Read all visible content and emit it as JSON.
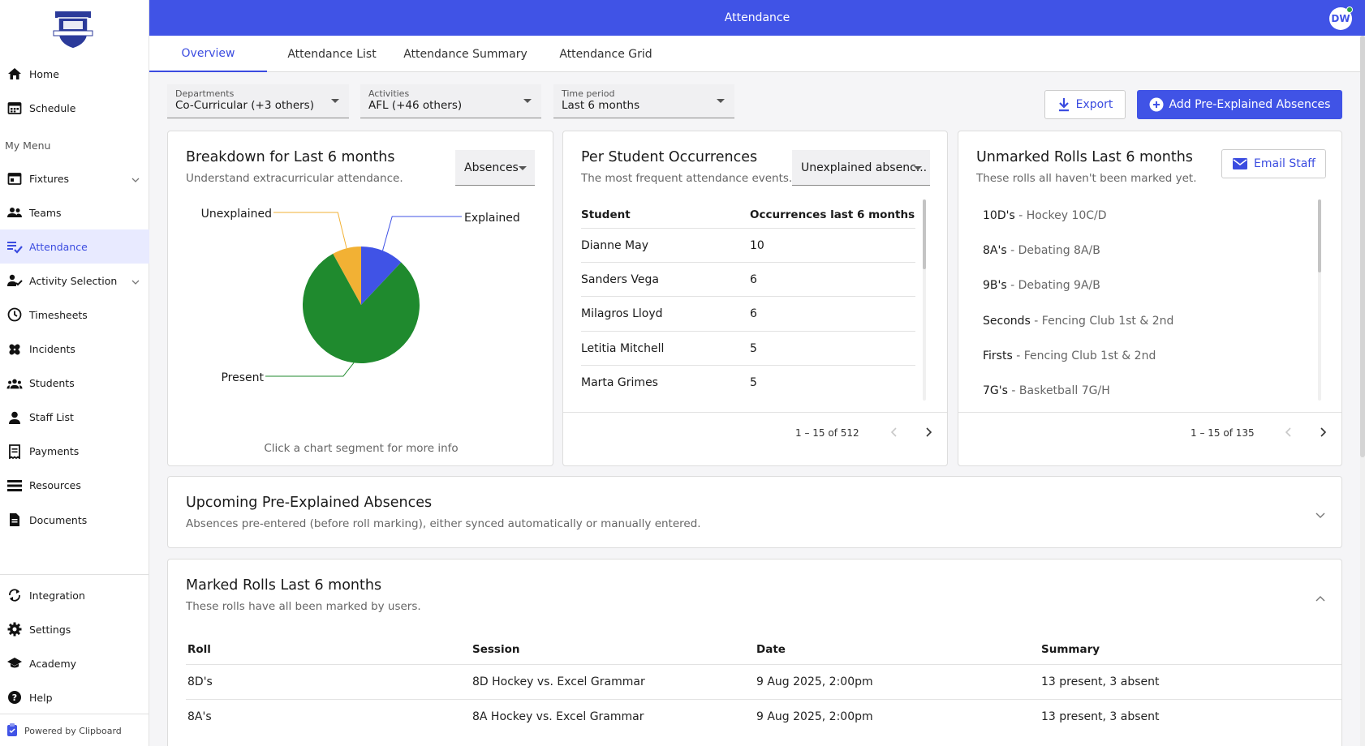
{
  "app": {
    "title": "Attendance",
    "user_initials": "DW",
    "powered_by": "Powered by Clipboard"
  },
  "colors": {
    "primary": "#4053e6",
    "pie_present": "#1f8a2e",
    "pie_explained": "#4053e6",
    "pie_unexplained": "#f2b134"
  },
  "sidebar": {
    "items_top": [
      {
        "label": "Home",
        "icon": "home-icon"
      },
      {
        "label": "Schedule",
        "icon": "calendar-icon"
      }
    ],
    "section_label": "My Menu",
    "items_menu": [
      {
        "label": "Fixtures",
        "icon": "fixtures-icon",
        "expandable": true
      },
      {
        "label": "Teams",
        "icon": "teams-icon"
      },
      {
        "label": "Attendance",
        "icon": "attendance-icon",
        "active": true
      },
      {
        "label": "Activity Selection",
        "icon": "activity-selection-icon",
        "expandable": true
      },
      {
        "label": "Timesheets",
        "icon": "clock-icon"
      },
      {
        "label": "Incidents",
        "icon": "bandage-icon"
      },
      {
        "label": "Students",
        "icon": "students-icon"
      },
      {
        "label": "Staff List",
        "icon": "person-icon"
      },
      {
        "label": "Payments",
        "icon": "receipt-icon"
      },
      {
        "label": "Resources",
        "icon": "list-icon"
      },
      {
        "label": "Documents",
        "icon": "document-icon"
      }
    ],
    "items_bottom": [
      {
        "label": "Integration",
        "icon": "sync-icon"
      },
      {
        "label": "Settings",
        "icon": "gear-icon"
      },
      {
        "label": "Academy",
        "icon": "graduation-cap-icon"
      },
      {
        "label": "Help",
        "icon": "help-icon"
      }
    ]
  },
  "tabs": [
    "Overview",
    "Attendance List",
    "Attendance Summary",
    "Attendance Grid"
  ],
  "filters": {
    "departments": {
      "label": "Departments",
      "value": "Co-Curricular (+3 others)"
    },
    "activities": {
      "label": "Activities",
      "value": "AFL (+46 others)"
    },
    "time_period": {
      "label": "Time period",
      "value": "Last 6 months"
    }
  },
  "actions": {
    "export": "Export",
    "add_pre_explained": "Add Pre-Explained Absences"
  },
  "breakdown": {
    "title": "Breakdown for Last 6 months",
    "subtitle": "Understand extracurricular attendance.",
    "select": "Absences",
    "hint": "Click a chart segment for more info"
  },
  "chart_data": {
    "type": "pie",
    "categories": [
      "Explained",
      "Present",
      "Unexplained"
    ],
    "values": [
      12,
      80,
      8
    ]
  },
  "per_student": {
    "title": "Per Student Occurrences",
    "subtitle": "The most frequent attendance events.",
    "select": "Unexplained absenc...",
    "columns": [
      "Student",
      "Occurrences last 6 months"
    ],
    "rows": [
      {
        "student": "Dianne May",
        "count": "10"
      },
      {
        "student": "Sanders Vega",
        "count": "6"
      },
      {
        "student": "Milagros Lloyd",
        "count": "6"
      },
      {
        "student": "Letitia Mitchell",
        "count": "5"
      },
      {
        "student": "Marta Grimes",
        "count": "5"
      }
    ],
    "pagination": "1 – 15 of 512"
  },
  "unmarked": {
    "title": "Unmarked Rolls Last 6 months",
    "subtitle": "These rolls all haven't been marked yet.",
    "email_button": "Email Staff",
    "items": [
      {
        "roll": "10D's",
        "rest": " - Hockey 10C/D"
      },
      {
        "roll": "8A's",
        "rest": " - Debating 8A/B"
      },
      {
        "roll": "9B's",
        "rest": " - Debating 9A/B"
      },
      {
        "roll": "Seconds",
        "rest": " - Fencing Club 1st & 2nd"
      },
      {
        "roll": "Firsts",
        "rest": " - Fencing Club 1st & 2nd"
      },
      {
        "roll": "7G's",
        "rest": " - Basketball 7G/H"
      }
    ],
    "pagination": "1 – 15 of 135"
  },
  "upcoming": {
    "title": "Upcoming Pre-Explained Absences",
    "subtitle": "Absences pre-entered (before roll marking), either synced automatically or manually entered."
  },
  "marked": {
    "title": "Marked Rolls Last 6 months",
    "subtitle": "These rolls have all been marked by users.",
    "columns": [
      "Roll",
      "Session",
      "Date",
      "Summary"
    ],
    "rows": [
      {
        "roll": "8D's",
        "session": "8D Hockey vs. Excel Grammar",
        "date": "9 Aug 2025, 2:00pm",
        "summary": "13 present, 3 absent"
      },
      {
        "roll": "8A's",
        "session": "8A Hockey vs. Excel Grammar",
        "date": "9 Aug 2025, 2:00pm",
        "summary": "13 present, 3 absent"
      }
    ]
  }
}
